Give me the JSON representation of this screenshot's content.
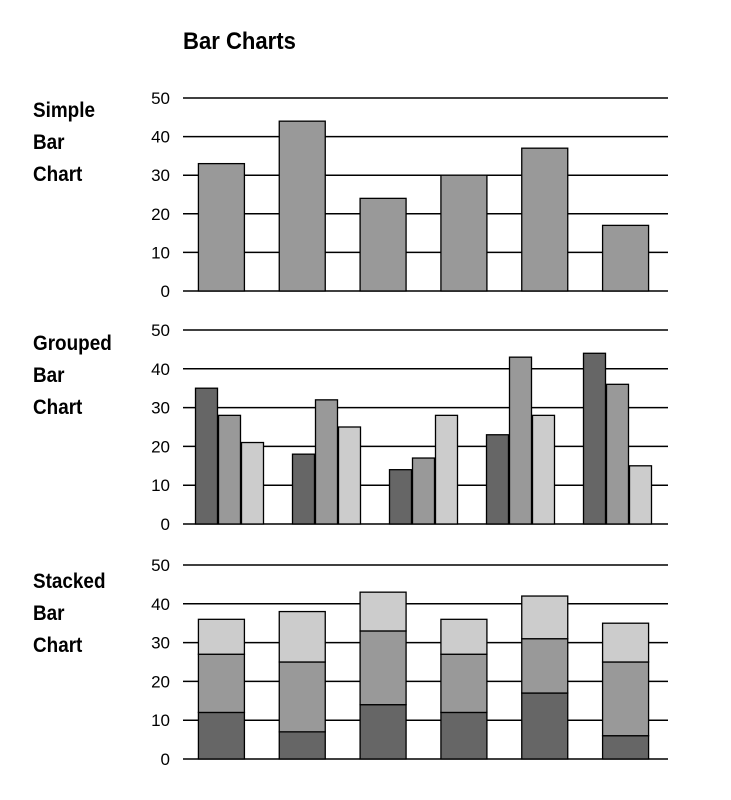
{
  "title": "Bar Charts",
  "colors": {
    "dark": "#666666",
    "mid": "#999999",
    "light": "#cccccc",
    "grid": "#000000"
  },
  "panels": [
    {
      "label_lines": [
        "Simple",
        "Bar",
        "Chart"
      ]
    },
    {
      "label_lines": [
        "Grouped",
        "Bar",
        "Chart"
      ]
    },
    {
      "label_lines": [
        "Stacked",
        "Bar",
        "Chart"
      ]
    }
  ],
  "chart_data": [
    {
      "type": "bar",
      "title": "Simple Bar Chart",
      "ylim": [
        0,
        50
      ],
      "yticks": [
        0,
        10,
        20,
        30,
        40,
        50
      ],
      "grid": true,
      "values": [
        33,
        44,
        24,
        30,
        37,
        17
      ]
    },
    {
      "type": "bar",
      "title": "Grouped Bar Chart",
      "ylim": [
        0,
        50
      ],
      "yticks": [
        0,
        10,
        20,
        30,
        40,
        50
      ],
      "grid": true,
      "series": [
        {
          "values": [
            35,
            18,
            14,
            23,
            44
          ]
        },
        {
          "values": [
            28,
            32,
            17,
            43,
            36
          ]
        },
        {
          "values": [
            21,
            25,
            28,
            28,
            15
          ]
        }
      ]
    },
    {
      "type": "bar",
      "title": "Stacked Bar Chart",
      "stacked": true,
      "ylim": [
        0,
        50
      ],
      "yticks": [
        0,
        10,
        20,
        30,
        40,
        50
      ],
      "grid": true,
      "series": [
        {
          "values": [
            12,
            7,
            14,
            12,
            17,
            6
          ]
        },
        {
          "values": [
            15,
            18,
            19,
            15,
            14,
            19
          ]
        },
        {
          "values": [
            9,
            13,
            10,
            9,
            11,
            10
          ]
        }
      ]
    }
  ]
}
